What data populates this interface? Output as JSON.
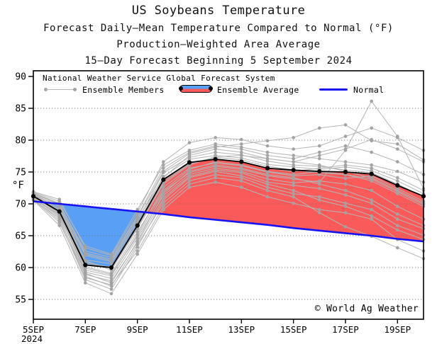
{
  "title": "US Soybeans Temperature",
  "subtitle1": "Forecast Daily–Mean Temperature Compared to Normal (°F)",
  "subtitle2": "Production–Weighted Area Average",
  "subtitle3": "15–Day Forecast Beginning 5 September 2024",
  "watermark": "© World Ag Weather",
  "legend": {
    "header": "National Weather Service Global Forecast System",
    "members": "Ensemble Members",
    "average": "Ensemble Average",
    "normal": "Normal"
  },
  "axes": {
    "y_label": "°F",
    "y_ticks": [
      90,
      85,
      80,
      75,
      70,
      65,
      60,
      55
    ],
    "x_ticks": [
      {
        "label": "5SEP",
        "sub": "2024",
        "day": 0
      },
      {
        "label": "7SEP",
        "day": 2
      },
      {
        "label": "9SEP",
        "day": 4
      },
      {
        "label": "11SEP",
        "day": 6
      },
      {
        "label": "13SEP",
        "day": 8
      },
      {
        "label": "15SEP",
        "day": 10
      },
      {
        "label": "17SEP",
        "day": 12
      },
      {
        "label": "19SEP",
        "day": 14
      }
    ]
  },
  "colors": {
    "background": "#ffffff",
    "frame": "#000000",
    "grid": "#6e6e6e",
    "below_normal_fill": "#589ff5",
    "above_normal_fill": "#fa5a5a",
    "normal_line": "#1812f2",
    "ensemble_average_line": "#000000",
    "ensemble_member_line": "#b5b5b5",
    "ensemble_member_dot": "#a3a3a3"
  },
  "chart_data": {
    "type": "line",
    "title": "US Soybeans Temperature",
    "subtitle": [
      "Forecast Daily–Mean Temperature Compared to Normal (°F)",
      "Production–Weighted Area Average",
      "15–Day Forecast Beginning 5 September 2024"
    ],
    "ylabel": "°F",
    "ylim": [
      51.9,
      90.9
    ],
    "yticks": [
      55,
      60,
      65,
      70,
      75,
      80,
      85,
      90
    ],
    "xtick_labels": [
      "5SEP",
      "7SEP",
      "9SEP",
      "11SEP",
      "13SEP",
      "15SEP",
      "17SEP",
      "19SEP"
    ],
    "grid": "horizontal dotted",
    "legend_position": "top-left inside plot",
    "x_days": [
      "5SEP",
      "6SEP",
      "7SEP",
      "8SEP",
      "9SEP",
      "10SEP",
      "11SEP",
      "12SEP",
      "13SEP",
      "14SEP",
      "15SEP",
      "16SEP",
      "17SEP",
      "18SEP",
      "19SEP",
      "20SEP"
    ],
    "ensemble_average": [
      71.2,
      68.8,
      60.4,
      60.0,
      66.6,
      73.8,
      76.5,
      77.0,
      76.6,
      75.6,
      75.3,
      75.1,
      75.0,
      74.7,
      72.9,
      71.2
    ],
    "normal": [
      70.4,
      70.0,
      69.6,
      69.2,
      68.8,
      68.4,
      67.9,
      67.5,
      67.1,
      66.7,
      66.2,
      65.8,
      65.4,
      65.0,
      64.5,
      64.1
    ],
    "ensemble_members": [
      [
        71.4,
        69.3,
        61.2,
        60.6,
        67.0,
        74.3,
        77.0,
        77.6,
        77.2,
        76.2,
        75.8,
        75.4,
        75.8,
        75.2,
        73.6,
        71.6
      ],
      [
        71.0,
        68.1,
        59.6,
        58.7,
        65.2,
        72.6,
        75.6,
        76.4,
        76.0,
        75.0,
        74.4,
        74.6,
        74.0,
        74.4,
        72.4,
        70.4
      ],
      [
        70.8,
        67.4,
        58.1,
        56.6,
        63.2,
        70.6,
        74.1,
        75.1,
        74.4,
        73.1,
        72.1,
        70.6,
        69.6,
        68.1,
        65.9,
        64.4
      ],
      [
        71.8,
        70.4,
        63.4,
        62.1,
        69.1,
        76.1,
        78.4,
        79.4,
        78.9,
        78.1,
        77.6,
        77.1,
        76.6,
        76.1,
        75.1,
        73.4
      ],
      [
        70.6,
        66.6,
        57.6,
        55.9,
        62.1,
        69.1,
        72.6,
        73.4,
        72.6,
        71.1,
        70.1,
        69.1,
        68.6,
        67.6,
        64.4,
        62.6
      ],
      [
        71.2,
        69.0,
        60.6,
        60.1,
        66.6,
        73.6,
        76.4,
        77.1,
        76.6,
        75.6,
        75.1,
        75.6,
        76.1,
        75.6,
        74.1,
        72.1
      ],
      [
        71.6,
        70.0,
        62.6,
        61.6,
        68.1,
        75.6,
        78.1,
        79.1,
        78.6,
        77.6,
        77.1,
        78.1,
        79.1,
        78.1,
        76.6,
        74.6
      ],
      [
        70.9,
        68.4,
        59.1,
        57.6,
        64.1,
        71.6,
        75.1,
        76.1,
        75.6,
        74.6,
        74.1,
        73.1,
        72.1,
        70.6,
        68.4,
        66.6
      ],
      [
        71.4,
        69.7,
        61.1,
        59.6,
        66.1,
        73.1,
        76.1,
        77.4,
        77.6,
        77.1,
        76.6,
        76.1,
        75.1,
        74.1,
        72.1,
        70.1
      ],
      [
        71.1,
        68.7,
        60.1,
        59.1,
        65.6,
        72.1,
        75.4,
        76.6,
        76.1,
        75.1,
        74.6,
        75.1,
        74.6,
        73.6,
        71.6,
        69.6
      ],
      [
        71.7,
        70.1,
        62.1,
        61.1,
        67.6,
        74.1,
        77.6,
        78.6,
        78.1,
        77.1,
        76.6,
        77.6,
        78.6,
        80.1,
        78.6,
        76.6
      ],
      [
        70.7,
        67.1,
        58.6,
        57.1,
        63.6,
        70.1,
        73.6,
        74.6,
        74.1,
        72.6,
        71.6,
        71.1,
        70.1,
        69.1,
        66.6,
        65.1
      ],
      [
        71.3,
        69.1,
        60.9,
        59.9,
        66.3,
        73.3,
        76.3,
        77.3,
        76.9,
        75.9,
        75.3,
        74.9,
        74.6,
        73.9,
        71.9,
        69.9
      ],
      [
        71.9,
        70.7,
        63.1,
        61.9,
        68.6,
        76.6,
        79.6,
        80.4,
        80.1,
        79.1,
        78.6,
        79.1,
        80.6,
        81.9,
        80.4,
        78.4
      ],
      [
        71.0,
        68.2,
        59.9,
        58.9,
        64.9,
        71.9,
        74.9,
        75.9,
        75.4,
        74.4,
        73.9,
        73.4,
        78.4,
        86.1,
        80.6,
        72.4
      ],
      [
        70.7,
        67.7,
        58.9,
        57.9,
        63.9,
        70.9,
        74.3,
        75.3,
        74.9,
        73.4,
        72.9,
        72.4,
        71.4,
        70.1,
        67.6,
        66.1
      ],
      [
        71.5,
        69.6,
        61.9,
        60.9,
        67.3,
        74.9,
        77.3,
        78.1,
        77.7,
        76.7,
        76.1,
        75.9,
        75.3,
        74.9,
        73.1,
        71.1
      ],
      [
        71.2,
        68.5,
        59.3,
        58.3,
        64.6,
        71.3,
        74.6,
        75.6,
        75.1,
        73.9,
        73.3,
        73.6,
        73.1,
        72.1,
        69.6,
        67.6
      ],
      [
        70.9,
        67.9,
        58.4,
        57.3,
        62.6,
        69.6,
        73.1,
        74.1,
        73.6,
        72.1,
        71.1,
        68.6,
        66.4,
        64.9,
        63.1,
        61.4
      ],
      [
        71.6,
        69.9,
        62.3,
        61.3,
        67.9,
        75.1,
        77.9,
        78.9,
        79.4,
        79.9,
        80.4,
        81.9,
        82.4,
        79.9,
        79.4,
        76.9
      ]
    ]
  }
}
